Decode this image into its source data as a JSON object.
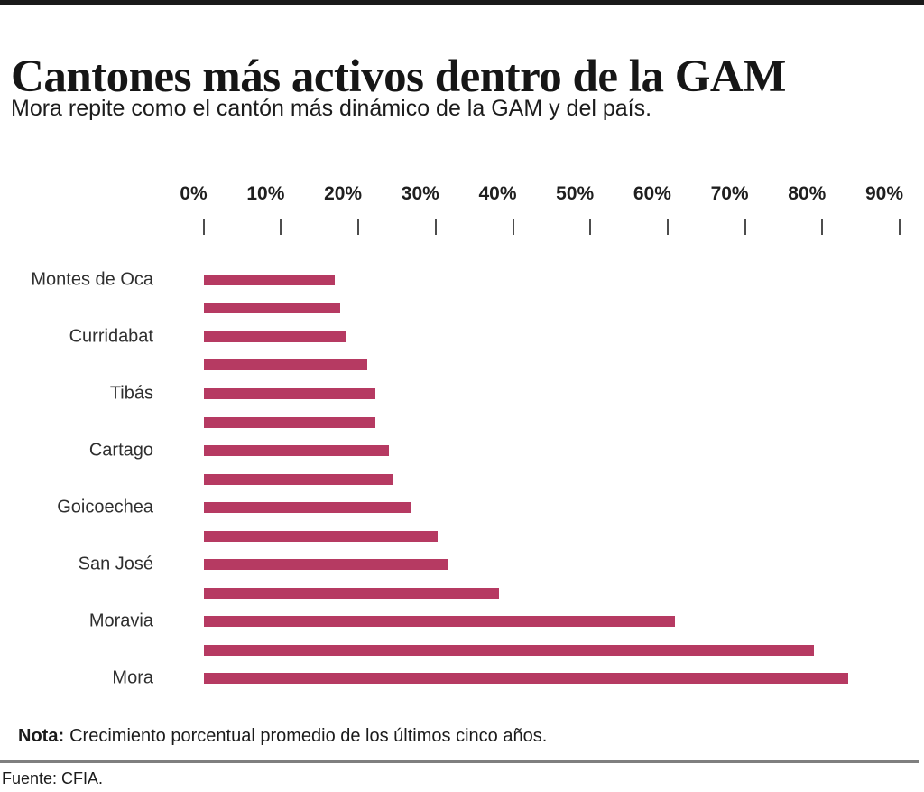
{
  "header": {
    "title": "Cantones más activos dentro de la GAM",
    "subtitle": "Mora repite como el cantón más dinámico de la GAM y del país."
  },
  "footer": {
    "note_label": "Nota:",
    "note_text": "Crecimiento porcentual promedio de los últimos cinco años.",
    "source": "Fuente: CFIA."
  },
  "colors": {
    "bar": "#b63a62",
    "top_accent": "#1a1a1a",
    "divider": "#7f7f7f"
  },
  "chart_data": {
    "type": "bar",
    "orientation": "horizontal",
    "title": "Cantones más activos dentro de la GAM",
    "subtitle": "Mora repite como el cantón más dinámico de la GAM y del país.",
    "note": "Crecimiento porcentual promedio de los últimos cinco años.",
    "source": "CFIA",
    "unit": "percent",
    "xlim": [
      0,
      90
    ],
    "x_tick_labels": [
      "0%",
      "10%",
      "20%",
      "30%",
      "40%",
      "50%",
      "60%",
      "70%",
      "80%",
      "90%"
    ],
    "grid": false,
    "legend": false,
    "axis_label_position": "top",
    "bars": [
      {
        "label": "Montes de Oca",
        "value": 17.0
      },
      {
        "label": "",
        "value": 17.6
      },
      {
        "label": "Curridabat",
        "value": 18.5
      },
      {
        "label": "",
        "value": 21.2
      },
      {
        "label": "Tibás",
        "value": 22.2
      },
      {
        "label": "",
        "value": 22.2
      },
      {
        "label": "Cartago",
        "value": 24.0
      },
      {
        "label": "",
        "value": 24.4
      },
      {
        "label": "Goicoechea",
        "value": 26.8
      },
      {
        "label": "",
        "value": 30.3
      },
      {
        "label": "San José",
        "value": 31.7
      },
      {
        "label": "",
        "value": 38.2
      },
      {
        "label": "Moravia",
        "value": 61.0
      },
      {
        "label": "",
        "value": 78.9
      },
      {
        "label": "Mora",
        "value": 83.3
      }
    ]
  }
}
